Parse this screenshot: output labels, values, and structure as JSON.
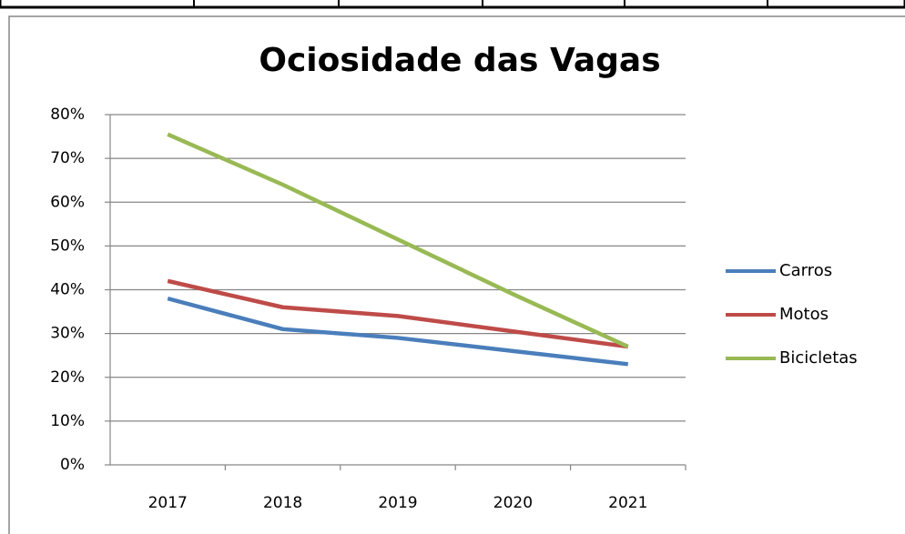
{
  "chart_data": {
    "type": "line",
    "title": "Ociosidade das Vagas",
    "categories": [
      "2017",
      "2018",
      "2019",
      "2020",
      "2021"
    ],
    "series": [
      {
        "name": "Carros",
        "color": "#4a7ebb",
        "values": [
          38,
          31,
          29,
          26,
          23
        ]
      },
      {
        "name": "Motos",
        "color": "#be4b48",
        "values": [
          42,
          36,
          34,
          30.5,
          27
        ]
      },
      {
        "name": "Bicicletas",
        "color": "#98b954",
        "values": [
          75.5,
          64,
          51.5,
          39,
          27
        ]
      }
    ],
    "ylim": [
      0,
      80
    ],
    "yticks": [
      {
        "value": 0,
        "label": "0%"
      },
      {
        "value": 10,
        "label": "10%"
      },
      {
        "value": 20,
        "label": "20%"
      },
      {
        "value": 30,
        "label": "30%"
      },
      {
        "value": 40,
        "label": "40%"
      },
      {
        "value": 50,
        "label": "50%"
      },
      {
        "value": 60,
        "label": "60%"
      },
      {
        "value": 70,
        "label": "70%"
      },
      {
        "value": 80,
        "label": "80%"
      }
    ],
    "grid": true,
    "legend": "right"
  }
}
